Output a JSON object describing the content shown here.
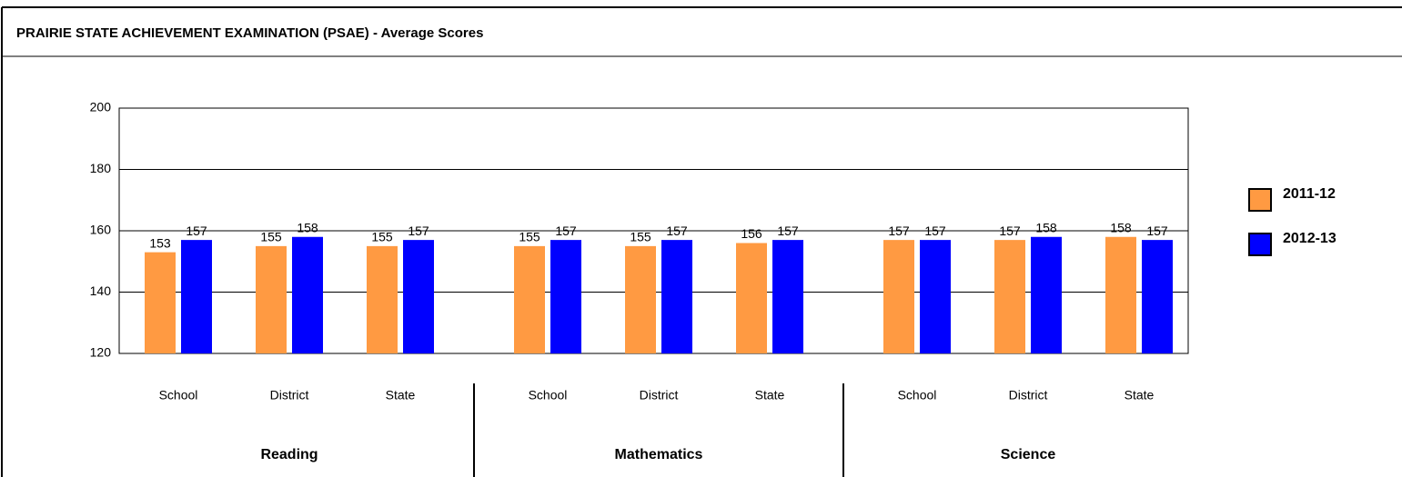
{
  "chart_data": {
    "type": "bar",
    "title": "PRAIRIE STATE ACHIEVEMENT EXAMINATION (PSAE) - Average Scores",
    "categories": [
      "School",
      "District",
      "State",
      "School",
      "District",
      "State",
      "School",
      "District",
      "State"
    ],
    "groups": [
      "Reading",
      "Mathematics",
      "Science"
    ],
    "series": [
      {
        "name": "2011-12",
        "color": "#ff9a42",
        "values": [
          153,
          155,
          155,
          155,
          155,
          156,
          157,
          157,
          158
        ]
      },
      {
        "name": "2012-13",
        "color": "#0000ff",
        "values": [
          157,
          158,
          157,
          157,
          157,
          157,
          157,
          158,
          157
        ]
      }
    ],
    "ylim": [
      120,
      200
    ],
    "yticks": [
      120,
      140,
      160,
      180,
      200
    ],
    "grid": true,
    "legend": "right"
  }
}
